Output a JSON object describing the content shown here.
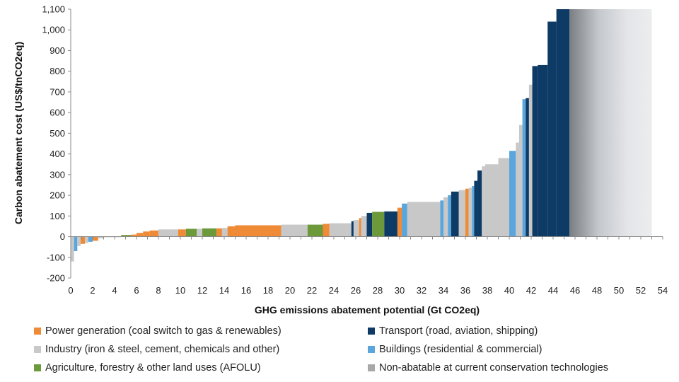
{
  "chart_data": {
    "type": "bar",
    "subtype": "marginal-abatement-cost-curve",
    "title": "",
    "xlabel": "GHG emissions abatement potential  (Gt CO2eq)",
    "ylabel": "Carbon abatement cost (US$/tnCO2eq)",
    "xlim": [
      0,
      54
    ],
    "ylim": [
      -200,
      1100
    ],
    "xticks": [
      "0",
      "2",
      "4",
      "6",
      "8",
      "10",
      "12",
      "14",
      "16",
      "18",
      "20",
      "22",
      "24",
      "26",
      "28",
      "30",
      "32",
      "34",
      "36",
      "38",
      "40",
      "42",
      "44",
      "46",
      "48",
      "50",
      "52",
      "54"
    ],
    "yticks": [
      "-200",
      "-100",
      "0",
      "100",
      "200",
      "300",
      "400",
      "500",
      "600",
      "700",
      "800",
      "900",
      "1,000",
      "1,100"
    ],
    "ytick_values": [
      -200,
      -100,
      0,
      100,
      200,
      300,
      400,
      500,
      600,
      700,
      800,
      900,
      1000,
      1100
    ],
    "categories": {
      "power": {
        "label": "Power generation (coal switch to gas & renewables)",
        "color": "#ef8a36"
      },
      "transport": {
        "label": "Transport (road, aviation, shipping)",
        "color": "#0e3a66"
      },
      "industry": {
        "label": "Industry (iron & steel, cement, chemicals and other)",
        "color": "#c8c8c8"
      },
      "buildings": {
        "label": "Buildings (residential & commercial)",
        "color": "#5aa6dc"
      },
      "afolu": {
        "label": "Agriculture, forestry & other land uses (AFOLU)",
        "color": "#6c9a3a"
      },
      "nonabatable": {
        "label": "Non-abatable at current conservation technologies",
        "color": "#a8a8a8"
      }
    },
    "segments": [
      {
        "x0": 0.0,
        "x1": 0.3,
        "value": -120,
        "category": "industry"
      },
      {
        "x0": 0.3,
        "x1": 0.6,
        "value": -70,
        "category": "buildings"
      },
      {
        "x0": 0.6,
        "x1": 0.9,
        "value": -45,
        "category": "industry"
      },
      {
        "x0": 0.9,
        "x1": 1.3,
        "value": -35,
        "category": "power"
      },
      {
        "x0": 1.3,
        "x1": 1.6,
        "value": -30,
        "category": "industry"
      },
      {
        "x0": 1.6,
        "x1": 2.0,
        "value": -25,
        "category": "buildings"
      },
      {
        "x0": 2.0,
        "x1": 2.5,
        "value": -20,
        "category": "power"
      },
      {
        "x0": 2.5,
        "x1": 3.0,
        "value": -8,
        "category": "industry"
      },
      {
        "x0": 3.0,
        "x1": 4.6,
        "value": -3,
        "category": "industry"
      },
      {
        "x0": 4.6,
        "x1": 5.5,
        "value": 8,
        "category": "afolu"
      },
      {
        "x0": 5.5,
        "x1": 6.0,
        "value": 10,
        "category": "power"
      },
      {
        "x0": 6.0,
        "x1": 6.6,
        "value": 18,
        "category": "power"
      },
      {
        "x0": 6.6,
        "x1": 7.2,
        "value": 25,
        "category": "power"
      },
      {
        "x0": 7.2,
        "x1": 8.0,
        "value": 30,
        "category": "power"
      },
      {
        "x0": 8.0,
        "x1": 9.8,
        "value": 35,
        "category": "industry"
      },
      {
        "x0": 9.8,
        "x1": 10.5,
        "value": 35,
        "category": "power"
      },
      {
        "x0": 10.5,
        "x1": 11.5,
        "value": 38,
        "category": "afolu"
      },
      {
        "x0": 11.5,
        "x1": 12.0,
        "value": 38,
        "category": "industry"
      },
      {
        "x0": 12.0,
        "x1": 13.3,
        "value": 40,
        "category": "afolu"
      },
      {
        "x0": 13.3,
        "x1": 13.8,
        "value": 40,
        "category": "power"
      },
      {
        "x0": 13.8,
        "x1": 14.3,
        "value": 42,
        "category": "industry"
      },
      {
        "x0": 14.3,
        "x1": 15.0,
        "value": 50,
        "category": "power"
      },
      {
        "x0": 15.0,
        "x1": 19.2,
        "value": 55,
        "category": "power"
      },
      {
        "x0": 19.2,
        "x1": 21.6,
        "value": 58,
        "category": "industry"
      },
      {
        "x0": 21.6,
        "x1": 23.0,
        "value": 58,
        "category": "afolu"
      },
      {
        "x0": 23.0,
        "x1": 23.6,
        "value": 62,
        "category": "power"
      },
      {
        "x0": 23.6,
        "x1": 25.2,
        "value": 65,
        "category": "industry"
      },
      {
        "x0": 25.2,
        "x1": 25.6,
        "value": 65,
        "category": "industry"
      },
      {
        "x0": 25.6,
        "x1": 25.8,
        "value": 75,
        "category": "transport"
      },
      {
        "x0": 25.8,
        "x1": 26.3,
        "value": 80,
        "category": "industry"
      },
      {
        "x0": 26.3,
        "x1": 26.5,
        "value": 90,
        "category": "power"
      },
      {
        "x0": 26.5,
        "x1": 27.0,
        "value": 100,
        "category": "industry"
      },
      {
        "x0": 27.0,
        "x1": 27.5,
        "value": 115,
        "category": "transport"
      },
      {
        "x0": 27.5,
        "x1": 28.0,
        "value": 120,
        "category": "afolu"
      },
      {
        "x0": 28.0,
        "x1": 28.6,
        "value": 120,
        "category": "afolu"
      },
      {
        "x0": 28.6,
        "x1": 29.8,
        "value": 122,
        "category": "transport"
      },
      {
        "x0": 29.8,
        "x1": 30.2,
        "value": 140,
        "category": "power"
      },
      {
        "x0": 30.2,
        "x1": 30.7,
        "value": 160,
        "category": "buildings"
      },
      {
        "x0": 30.7,
        "x1": 33.7,
        "value": 168,
        "category": "industry"
      },
      {
        "x0": 33.7,
        "x1": 34.0,
        "value": 175,
        "category": "buildings"
      },
      {
        "x0": 34.0,
        "x1": 34.4,
        "value": 190,
        "category": "industry"
      },
      {
        "x0": 34.4,
        "x1": 34.7,
        "value": 200,
        "category": "buildings"
      },
      {
        "x0": 34.7,
        "x1": 35.4,
        "value": 218,
        "category": "transport"
      },
      {
        "x0": 35.4,
        "x1": 36.0,
        "value": 225,
        "category": "industry"
      },
      {
        "x0": 36.0,
        "x1": 36.3,
        "value": 232,
        "category": "power"
      },
      {
        "x0": 36.3,
        "x1": 36.6,
        "value": 236,
        "category": "industry"
      },
      {
        "x0": 36.6,
        "x1": 36.8,
        "value": 245,
        "category": "buildings"
      },
      {
        "x0": 36.8,
        "x1": 37.1,
        "value": 270,
        "category": "transport"
      },
      {
        "x0": 37.1,
        "x1": 37.5,
        "value": 320,
        "category": "transport"
      },
      {
        "x0": 37.5,
        "x1": 37.8,
        "value": 340,
        "category": "industry"
      },
      {
        "x0": 37.8,
        "x1": 39.0,
        "value": 350,
        "category": "industry"
      },
      {
        "x0": 39.0,
        "x1": 40.0,
        "value": 380,
        "category": "industry"
      },
      {
        "x0": 40.0,
        "x1": 40.6,
        "value": 415,
        "category": "buildings"
      },
      {
        "x0": 40.6,
        "x1": 40.9,
        "value": 455,
        "category": "industry"
      },
      {
        "x0": 40.9,
        "x1": 41.2,
        "value": 540,
        "category": "industry"
      },
      {
        "x0": 41.2,
        "x1": 41.5,
        "value": 665,
        "category": "buildings"
      },
      {
        "x0": 41.5,
        "x1": 41.8,
        "value": 670,
        "category": "transport"
      },
      {
        "x0": 41.8,
        "x1": 42.1,
        "value": 735,
        "category": "industry"
      },
      {
        "x0": 42.1,
        "x1": 42.6,
        "value": 825,
        "category": "transport"
      },
      {
        "x0": 42.6,
        "x1": 43.5,
        "value": 830,
        "category": "transport"
      },
      {
        "x0": 43.5,
        "x1": 44.3,
        "value": 1040,
        "category": "transport"
      },
      {
        "x0": 44.3,
        "x1": 45.5,
        "value": 1100,
        "category": "transport"
      },
      {
        "x0": 45.5,
        "x1": 53.0,
        "value": 1100,
        "category": "nonabatable"
      }
    ]
  },
  "legend": {
    "items": [
      {
        "key": "power",
        "label": "Power generation (coal switch to gas & renewables)",
        "color": "#ef8a36"
      },
      {
        "key": "transport",
        "label": "Transport (road, aviation, shipping)",
        "color": "#0e3a66"
      },
      {
        "key": "industry",
        "label": "Industry (iron & steel, cement, chemicals and other)",
        "color": "#c8c8c8"
      },
      {
        "key": "buildings",
        "label": "Buildings (residential & commercial)",
        "color": "#5aa6dc"
      },
      {
        "key": "afolu",
        "label": "Agriculture, forestry & other land uses (AFOLU)",
        "color": "#6c9a3a"
      },
      {
        "key": "nonabatable",
        "label": "Non-abatable at current conservation technologies",
        "color": "#a8a8a8"
      }
    ]
  }
}
